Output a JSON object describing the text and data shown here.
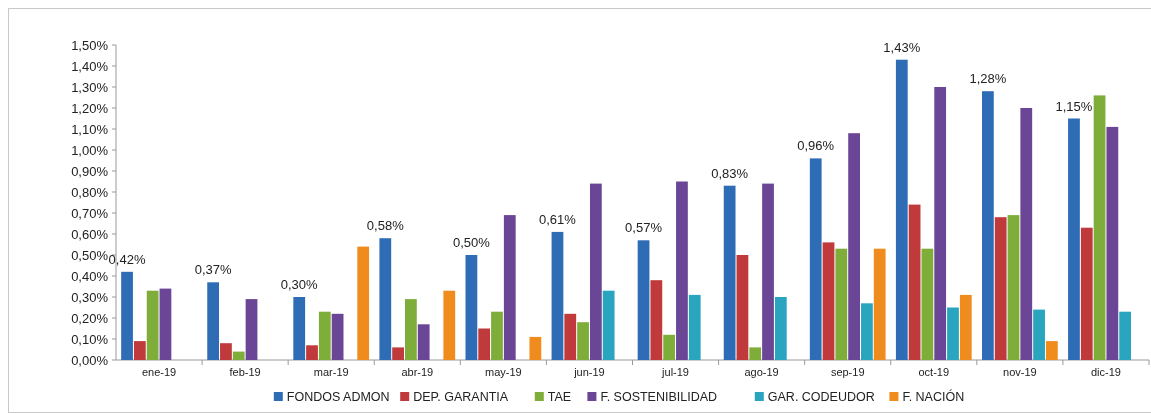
{
  "chart_data": {
    "type": "bar",
    "categories": [
      "ene-19",
      "feb-19",
      "mar-19",
      "abr-19",
      "may-19",
      "jun-19",
      "jul-19",
      "ago-19",
      "sep-19",
      "oct-19",
      "nov-19",
      "dic-19"
    ],
    "ylim": [
      0,
      1.5
    ],
    "yticks": [
      {
        "value": 0,
        "label": "0,00%"
      },
      {
        "value": 0.1,
        "label": "0,10%"
      },
      {
        "value": 0.2,
        "label": "0,20%"
      },
      {
        "value": 0.3,
        "label": "0,30%"
      },
      {
        "value": 0.4,
        "label": "0,40%"
      },
      {
        "value": 0.5,
        "label": "0,50%"
      },
      {
        "value": 0.6,
        "label": "0,60%"
      },
      {
        "value": 0.7,
        "label": "0,70%"
      },
      {
        "value": 0.8,
        "label": "0,80%"
      },
      {
        "value": 0.9,
        "label": "0,90%"
      },
      {
        "value": 1.0,
        "label": "1,00%"
      },
      {
        "value": 1.1,
        "label": "1,10%"
      },
      {
        "value": 1.2,
        "label": "1,20%"
      },
      {
        "value": 1.3,
        "label": "1,30%"
      },
      {
        "value": 1.4,
        "label": "1,40%"
      },
      {
        "value": 1.5,
        "label": "1,50%"
      }
    ],
    "grid": false,
    "legend": "bottom",
    "series": [
      {
        "name": "FONDOS ADMON",
        "color": "#2e6db5",
        "values": [
          0.42,
          0.37,
          0.3,
          0.58,
          0.5,
          0.61,
          0.57,
          0.83,
          0.96,
          1.43,
          1.28,
          1.15
        ],
        "value_labels": [
          "0,42%",
          "0,37%",
          "0,30%",
          "0,58%",
          "0,50%",
          "0,61%",
          "0,57%",
          "0,83%",
          "0,96%",
          "1,43%",
          "1,28%",
          "1,15%"
        ]
      },
      {
        "name": "DEP. GARANTIA",
        "color": "#c0393b",
        "values": [
          0.09,
          0.08,
          0.07,
          0.06,
          0.15,
          0.22,
          0.38,
          0.5,
          0.56,
          0.74,
          0.68,
          0.63
        ]
      },
      {
        "name": "TAE",
        "color": "#7fad3a",
        "values": [
          0.33,
          0.04,
          0.23,
          0.29,
          0.23,
          0.18,
          0.12,
          0.06,
          0.53,
          0.53,
          0.69,
          1.26
        ]
      },
      {
        "name": "F. SOSTENIBILIDAD",
        "color": "#6b4596",
        "values": [
          0.34,
          0.29,
          0.22,
          0.17,
          0.69,
          0.84,
          0.85,
          0.84,
          1.08,
          1.3,
          1.2,
          1.11
        ]
      },
      {
        "name": "GAR. CODEUDOR",
        "color": "#2aa5bf",
        "values": [
          null,
          null,
          null,
          null,
          null,
          0.33,
          0.31,
          0.3,
          0.27,
          0.25,
          0.24,
          0.23
        ]
      },
      {
        "name": "F. NACIÓN",
        "color": "#f08b1d",
        "values": [
          null,
          null,
          0.54,
          0.33,
          0.11,
          null,
          null,
          null,
          0.53,
          0.31,
          0.09,
          null
        ]
      }
    ]
  }
}
